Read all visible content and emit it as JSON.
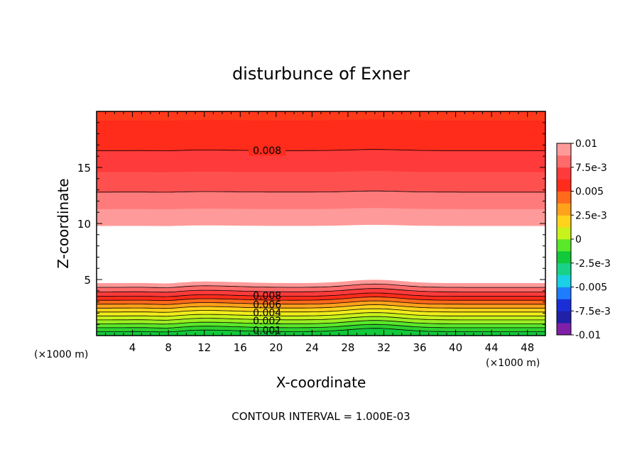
{
  "chart_data": {
    "type": "heatmap",
    "title": "disturbunce of Exner",
    "xlabel": "X-coordinate",
    "ylabel": "Z-coordinate",
    "x_unit": "(×1000 m)",
    "x_unit_right": "(×1000 m)",
    "xlim": [
      0,
      50
    ],
    "ylim": [
      0,
      20
    ],
    "x_ticks": [
      4,
      8,
      12,
      16,
      20,
      24,
      28,
      32,
      36,
      40,
      44,
      48
    ],
    "y_ticks": [
      5,
      10,
      15
    ],
    "contour_interval_text": "CONTOUR INTERVAL = 1.000E-03",
    "contour_labels": [
      "0.008",
      "0.008",
      "0.006",
      "0.004",
      "0.002",
      "0.001"
    ],
    "colorbar": {
      "range": [
        -0.01,
        0.01
      ],
      "tick_labels": [
        "0.01",
        "7.5e-3",
        "0.005",
        "2.5e-3",
        "0",
        "-2.5e-3",
        "-0.005",
        "-7.5e-3",
        "-0.01"
      ],
      "colors": [
        "#7f1fa8",
        "#2020a8",
        "#1a2ed8",
        "#1e7dff",
        "#19d0e6",
        "#19d28a",
        "#11c93a",
        "#5ae82a",
        "#c8f21b",
        "#ffd21b",
        "#ffa11b",
        "#ff6a1b",
        "#ff2b1b",
        "#ff3a3a",
        "#ff6a6a",
        "#ff9a9a"
      ]
    },
    "profile_description_bottom_layer_values": [
      {
        "z": 0.0,
        "value": 0.0005
      },
      {
        "z": 4.5,
        "value": 0.009
      }
    ],
    "bands": [
      {
        "z0": 0.0,
        "z1": 0.35,
        "color": "#11c93a"
      },
      {
        "z0": 0.35,
        "z1": 0.7,
        "color": "#2ed12e"
      },
      {
        "z0": 0.7,
        "z1": 1.05,
        "color": "#5ae82a"
      },
      {
        "z0": 1.05,
        "z1": 1.4,
        "color": "#9aee22"
      },
      {
        "z0": 1.4,
        "z1": 1.75,
        "color": "#c8f21b"
      },
      {
        "z0": 1.75,
        "z1": 2.1,
        "color": "#f0ec1b"
      },
      {
        "z0": 2.1,
        "z1": 2.45,
        "color": "#ffd21b"
      },
      {
        "z0": 2.45,
        "z1": 2.8,
        "color": "#ffa11b"
      },
      {
        "z0": 2.8,
        "z1": 3.15,
        "color": "#ff6a1b"
      },
      {
        "z0": 3.15,
        "z1": 3.5,
        "color": "#ff2b1b"
      },
      {
        "z0": 3.5,
        "z1": 3.9,
        "color": "#ff3a3a"
      },
      {
        "z0": 3.9,
        "z1": 4.3,
        "color": "#ff6a6a"
      },
      {
        "z0": 4.3,
        "z1": 4.7,
        "color": "#ff9a9a"
      },
      {
        "z0": 4.7,
        "z1": 9.8,
        "color": "#ffffff"
      },
      {
        "z0": 9.8,
        "z1": 11.3,
        "color": "#ff9a9a"
      },
      {
        "z0": 11.3,
        "z1": 12.8,
        "color": "#ff7a7a"
      },
      {
        "z0": 12.8,
        "z1": 14.6,
        "color": "#ff5050"
      },
      {
        "z0": 14.6,
        "z1": 16.5,
        "color": "#ff3a3a"
      },
      {
        "z0": 16.5,
        "z1": 19.2,
        "color": "#ff2b1b"
      },
      {
        "z0": 19.2,
        "z1": 20.0,
        "color": "#ff3a1b"
      }
    ]
  }
}
